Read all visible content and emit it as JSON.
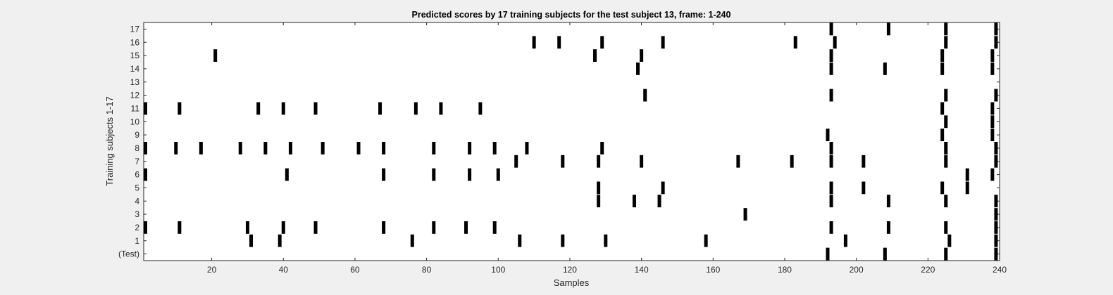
{
  "chart_data": {
    "type": "scatter",
    "title": "Predicted scores by 17 training subjects for the test subject 13, frame: 1-240",
    "xlabel": "Samples",
    "ylabel": "Training subjects 1-17",
    "xlim": [
      1,
      240
    ],
    "x_ticks": [
      20,
      40,
      60,
      80,
      100,
      120,
      140,
      160,
      180,
      200,
      220,
      240
    ],
    "y_tick_labels": [
      "(Test)",
      "1",
      "2",
      "3",
      "4",
      "5",
      "6",
      "7",
      "8",
      "9",
      "10",
      "11",
      "12",
      "13",
      "14",
      "15",
      "16",
      "17"
    ],
    "grid": false,
    "colors": {
      "figure_bg": "#f0f0f0",
      "axes_bg": "#ffffff",
      "mark": "#000000"
    },
    "series": [
      {
        "label": "(Test)",
        "x": [
          192,
          208,
          225,
          239
        ]
      },
      {
        "label": "1",
        "x": [
          31,
          39,
          76,
          106,
          118,
          130,
          158,
          197,
          226,
          239
        ]
      },
      {
        "label": "2",
        "x": [
          1,
          11,
          30,
          40,
          49,
          68,
          82,
          91,
          99,
          193,
          209,
          225,
          239
        ]
      },
      {
        "label": "3",
        "x": [
          169,
          239
        ]
      },
      {
        "label": "4",
        "x": [
          128,
          138,
          145,
          193,
          209,
          225,
          239
        ]
      },
      {
        "label": "5",
        "x": [
          128,
          146,
          193,
          202,
          224,
          231
        ]
      },
      {
        "label": "6",
        "x": [
          1,
          41,
          68,
          82,
          92,
          100,
          231,
          238
        ]
      },
      {
        "label": "7",
        "x": [
          105,
          118,
          128,
          140,
          167,
          182,
          193,
          202,
          225,
          239
        ]
      },
      {
        "label": "8",
        "x": [
          1,
          10,
          17,
          28,
          35,
          42,
          51,
          61,
          68,
          82,
          92,
          99,
          108,
          129,
          193,
          225,
          239
        ]
      },
      {
        "label": "9",
        "x": [
          192,
          224,
          238
        ]
      },
      {
        "label": "10",
        "x": [
          225,
          238
        ]
      },
      {
        "label": "11",
        "x": [
          1,
          11,
          33,
          40,
          49,
          67,
          77,
          84,
          95,
          224,
          238
        ]
      },
      {
        "label": "12",
        "x": [
          141,
          193,
          225,
          239
        ]
      },
      {
        "label": "13",
        "x": []
      },
      {
        "label": "14",
        "x": [
          139,
          193,
          208,
          224,
          238
        ]
      },
      {
        "label": "15",
        "x": [
          21,
          127,
          140,
          193,
          224,
          238
        ]
      },
      {
        "label": "16",
        "x": [
          110,
          117,
          129,
          146,
          183,
          194,
          225,
          239
        ]
      },
      {
        "label": "17",
        "x": [
          193,
          209,
          225,
          239
        ]
      }
    ]
  }
}
